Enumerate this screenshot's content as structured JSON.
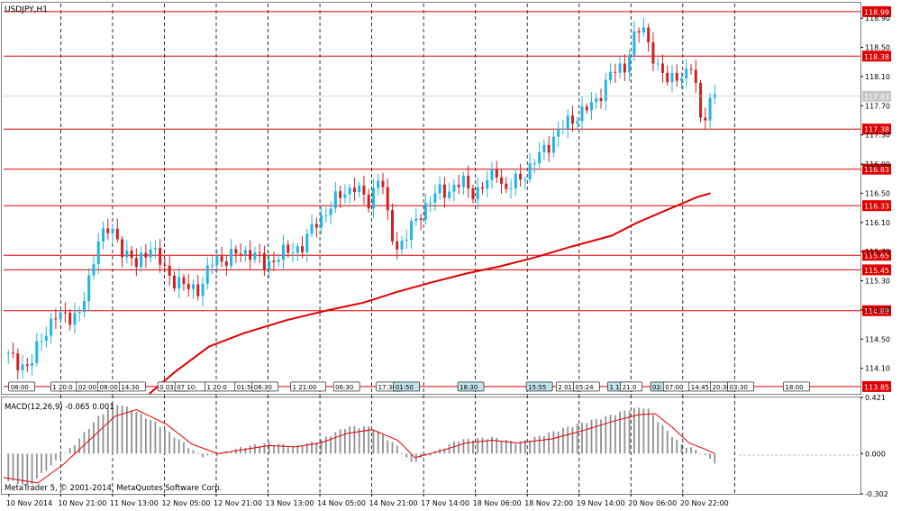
{
  "title": "USDJPY,H1",
  "colors": {
    "bull": "#1fb5e6",
    "bear": "#d21f1f",
    "line": "#e00000",
    "hist": "#909090",
    "grid": "#000000",
    "frame": "#808080"
  },
  "chart_data": [
    {
      "type": "candlestick",
      "title": "USDJPY,H1",
      "ylim": [
        113.75,
        119.1
      ],
      "yticks": [
        "118.90",
        "118.50",
        "118.10",
        "117.70",
        "117.30",
        "116.90",
        "116.50",
        "116.10",
        "115.70",
        "115.30",
        "114.90",
        "114.50",
        "114.10"
      ],
      "current_price": "117.83",
      "hlines": [
        {
          "value": 118.99,
          "label": "118.99"
        },
        {
          "value": 118.38,
          "label": "118.38"
        },
        {
          "value": 117.38,
          "label": "117.38"
        },
        {
          "value": 116.83,
          "label": "116.83"
        },
        {
          "value": 116.33,
          "label": "116.33"
        },
        {
          "value": 115.65,
          "label": "115.65"
        },
        {
          "value": 115.45,
          "label": "115.45"
        },
        {
          "value": 114.89,
          "label": "114.89"
        },
        {
          "value": 113.85,
          "label": "113.85"
        }
      ],
      "ma_points": [
        {
          "t": 0.17,
          "v": 113.75
        },
        {
          "t": 0.2,
          "v": 114.05
        },
        {
          "t": 0.24,
          "v": 114.4
        },
        {
          "t": 0.28,
          "v": 114.58
        },
        {
          "t": 0.33,
          "v": 114.76
        },
        {
          "t": 0.38,
          "v": 114.9
        },
        {
          "t": 0.42,
          "v": 115.0
        },
        {
          "t": 0.46,
          "v": 115.15
        },
        {
          "t": 0.5,
          "v": 115.28
        },
        {
          "t": 0.54,
          "v": 115.4
        },
        {
          "t": 0.58,
          "v": 115.5
        },
        {
          "t": 0.62,
          "v": 115.62
        },
        {
          "t": 0.66,
          "v": 115.76
        },
        {
          "t": 0.71,
          "v": 115.92
        },
        {
          "t": 0.74,
          "v": 116.1
        },
        {
          "t": 0.78,
          "v": 116.3
        },
        {
          "t": 0.81,
          "v": 116.45
        },
        {
          "t": 0.825,
          "v": 116.5
        }
      ],
      "price_path": [
        {
          "t": 0.0,
          "v": 114.3
        },
        {
          "t": 0.015,
          "v": 114.2
        },
        {
          "t": 0.03,
          "v": 114.1
        },
        {
          "t": 0.045,
          "v": 114.55
        },
        {
          "t": 0.06,
          "v": 114.8
        },
        {
          "t": 0.075,
          "v": 114.82
        },
        {
          "t": 0.09,
          "v": 114.85
        },
        {
          "t": 0.1,
          "v": 115.3
        },
        {
          "t": 0.11,
          "v": 115.9
        },
        {
          "t": 0.125,
          "v": 116.0
        },
        {
          "t": 0.14,
          "v": 115.72
        },
        {
          "t": 0.155,
          "v": 115.5
        },
        {
          "t": 0.17,
          "v": 115.8
        },
        {
          "t": 0.185,
          "v": 115.5
        },
        {
          "t": 0.2,
          "v": 115.3
        },
        {
          "t": 0.215,
          "v": 115.2
        },
        {
          "t": 0.23,
          "v": 115.2
        },
        {
          "t": 0.245,
          "v": 115.6
        },
        {
          "t": 0.26,
          "v": 115.6
        },
        {
          "t": 0.275,
          "v": 115.68
        },
        {
          "t": 0.29,
          "v": 115.7
        },
        {
          "t": 0.305,
          "v": 115.5
        },
        {
          "t": 0.32,
          "v": 115.65
        },
        {
          "t": 0.335,
          "v": 115.7
        },
        {
          "t": 0.35,
          "v": 115.8
        },
        {
          "t": 0.365,
          "v": 116.1
        },
        {
          "t": 0.38,
          "v": 116.3
        },
        {
          "t": 0.395,
          "v": 116.5
        },
        {
          "t": 0.41,
          "v": 116.6
        },
        {
          "t": 0.425,
          "v": 116.35
        },
        {
          "t": 0.44,
          "v": 116.8
        },
        {
          "t": 0.45,
          "v": 116.0
        },
        {
          "t": 0.46,
          "v": 115.75
        },
        {
          "t": 0.475,
          "v": 116.0
        },
        {
          "t": 0.49,
          "v": 116.3
        },
        {
          "t": 0.505,
          "v": 116.5
        },
        {
          "t": 0.52,
          "v": 116.55
        },
        {
          "t": 0.535,
          "v": 116.65
        },
        {
          "t": 0.55,
          "v": 116.5
        },
        {
          "t": 0.565,
          "v": 116.65
        },
        {
          "t": 0.575,
          "v": 116.85
        },
        {
          "t": 0.585,
          "v": 116.5
        },
        {
          "t": 0.6,
          "v": 116.7
        },
        {
          "t": 0.615,
          "v": 116.85
        },
        {
          "t": 0.63,
          "v": 117.1
        },
        {
          "t": 0.645,
          "v": 117.3
        },
        {
          "t": 0.66,
          "v": 117.5
        },
        {
          "t": 0.675,
          "v": 117.6
        },
        {
          "t": 0.69,
          "v": 117.75
        },
        {
          "t": 0.7,
          "v": 117.95
        },
        {
          "t": 0.71,
          "v": 118.15
        },
        {
          "t": 0.725,
          "v": 118.25
        },
        {
          "t": 0.735,
          "v": 118.6
        },
        {
          "t": 0.745,
          "v": 118.8
        },
        {
          "t": 0.755,
          "v": 118.5
        },
        {
          "t": 0.765,
          "v": 118.15
        },
        {
          "t": 0.775,
          "v": 118.05
        },
        {
          "t": 0.785,
          "v": 118.15
        },
        {
          "t": 0.795,
          "v": 118.05
        },
        {
          "t": 0.805,
          "v": 118.3
        },
        {
          "t": 0.812,
          "v": 117.55
        },
        {
          "t": 0.82,
          "v": 117.6
        },
        {
          "t": 0.83,
          "v": 117.83
        }
      ],
      "price_tag_tags": [
        "08:00",
        "1 20:0",
        "02:00",
        "08:00",
        "14:30",
        "0 03:0",
        "07 10:",
        "1 20:0",
        "01:50",
        "06:30",
        "1 21:00",
        "06:30",
        "17:30",
        "01:50",
        "18:30",
        "15:55",
        "2 01:",
        "05:24",
        "1 17:",
        "21:0",
        "02:",
        "07:00",
        "14:45",
        "20:30",
        "03:30",
        "18:00"
      ],
      "x_labels": [
        "10 Nov 2014",
        "10 Nov 21:00",
        "11 Nov 13:00",
        "12 Nov 05:00",
        "12 Nov 21:00",
        "13 Nov 13:00",
        "14 Nov 05:00",
        "14 Nov 21:00",
        "17 Nov 14:00",
        "18 Nov 06:00",
        "18 Nov 22:00",
        "19 Nov 14:00",
        "20 Nov 06:00",
        "20 Nov 22:00"
      ]
    },
    {
      "type": "bar",
      "title": "MACD(12,26,9) -0.065 0.001",
      "ylim": [
        -0.302,
        0.421
      ],
      "yticks": [
        "0.421",
        "0.000",
        "-0.302"
      ],
      "macd_path": [
        {
          "t": 0.0,
          "v": -0.2
        },
        {
          "t": 0.03,
          "v": -0.24
        },
        {
          "t": 0.05,
          "v": -0.12
        },
        {
          "t": 0.08,
          "v": 0.05
        },
        {
          "t": 0.11,
          "v": 0.27
        },
        {
          "t": 0.13,
          "v": 0.38
        },
        {
          "t": 0.15,
          "v": 0.33
        },
        {
          "t": 0.18,
          "v": 0.22
        },
        {
          "t": 0.21,
          "v": 0.08
        },
        {
          "t": 0.23,
          "v": -0.02
        },
        {
          "t": 0.25,
          "v": -0.01
        },
        {
          "t": 0.28,
          "v": 0.05
        },
        {
          "t": 0.31,
          "v": 0.08
        },
        {
          "t": 0.34,
          "v": 0.05
        },
        {
          "t": 0.37,
          "v": 0.1
        },
        {
          "t": 0.4,
          "v": 0.2
        },
        {
          "t": 0.43,
          "v": 0.2
        },
        {
          "t": 0.46,
          "v": 0.05
        },
        {
          "t": 0.475,
          "v": -0.07
        },
        {
          "t": 0.5,
          "v": 0.0
        },
        {
          "t": 0.53,
          "v": 0.1
        },
        {
          "t": 0.57,
          "v": 0.12
        },
        {
          "t": 0.6,
          "v": 0.08
        },
        {
          "t": 0.63,
          "v": 0.14
        },
        {
          "t": 0.67,
          "v": 0.22
        },
        {
          "t": 0.7,
          "v": 0.27
        },
        {
          "t": 0.73,
          "v": 0.33
        },
        {
          "t": 0.75,
          "v": 0.35
        },
        {
          "t": 0.77,
          "v": 0.2
        },
        {
          "t": 0.79,
          "v": 0.07
        },
        {
          "t": 0.81,
          "v": 0.02
        },
        {
          "t": 0.83,
          "v": -0.065
        }
      ],
      "signal_path": [
        {
          "t": 0.0,
          "v": -0.18
        },
        {
          "t": 0.04,
          "v": -0.22
        },
        {
          "t": 0.07,
          "v": -0.08
        },
        {
          "t": 0.1,
          "v": 0.1
        },
        {
          "t": 0.13,
          "v": 0.28
        },
        {
          "t": 0.155,
          "v": 0.33
        },
        {
          "t": 0.19,
          "v": 0.22
        },
        {
          "t": 0.22,
          "v": 0.07
        },
        {
          "t": 0.25,
          "v": 0.0
        },
        {
          "t": 0.28,
          "v": 0.03
        },
        {
          "t": 0.31,
          "v": 0.06
        },
        {
          "t": 0.34,
          "v": 0.05
        },
        {
          "t": 0.37,
          "v": 0.08
        },
        {
          "t": 0.4,
          "v": 0.15
        },
        {
          "t": 0.43,
          "v": 0.18
        },
        {
          "t": 0.46,
          "v": 0.1
        },
        {
          "t": 0.48,
          "v": -0.03
        },
        {
          "t": 0.51,
          "v": 0.02
        },
        {
          "t": 0.54,
          "v": 0.08
        },
        {
          "t": 0.57,
          "v": 0.1
        },
        {
          "t": 0.6,
          "v": 0.08
        },
        {
          "t": 0.64,
          "v": 0.11
        },
        {
          "t": 0.68,
          "v": 0.18
        },
        {
          "t": 0.71,
          "v": 0.24
        },
        {
          "t": 0.74,
          "v": 0.29
        },
        {
          "t": 0.76,
          "v": 0.3
        },
        {
          "t": 0.78,
          "v": 0.2
        },
        {
          "t": 0.8,
          "v": 0.08
        },
        {
          "t": 0.82,
          "v": 0.03
        },
        {
          "t": 0.83,
          "v": 0.001
        }
      ]
    }
  ],
  "footer": "MetaTrader 5, © 2001-2014, MetaQuotes Software Corp."
}
